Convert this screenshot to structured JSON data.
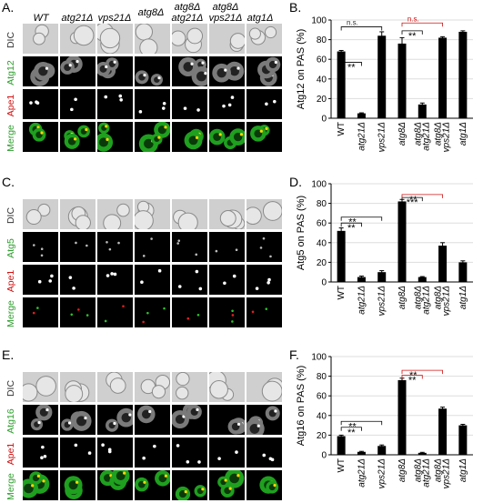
{
  "figure": {
    "strains": [
      "WT",
      "atg21Δ",
      "vps21Δ",
      "atg8Δ",
      "atg8Δ atg21Δ",
      "atg8Δ vps21Δ",
      "atg1Δ"
    ],
    "panels": [
      {
        "letter": "A.",
        "rows": [
          {
            "label": "DIC",
            "color": "#333333",
            "kind": "dic"
          },
          {
            "label": "Atg12",
            "color": "#2e9e2e",
            "kind": "gray"
          },
          {
            "label": "Ape1",
            "color": "#d01010",
            "kind": "dots"
          },
          {
            "label": "Merge",
            "color": "#2e9e2e",
            "kind": "merge"
          }
        ]
      },
      {
        "letter": "C.",
        "rows": [
          {
            "label": "DIC",
            "color": "#333333",
            "kind": "dic"
          },
          {
            "label": "Atg5",
            "color": "#2e9e2e",
            "kind": "sparse"
          },
          {
            "label": "Ape1",
            "color": "#d01010",
            "kind": "dots"
          },
          {
            "label": "Merge",
            "color": "#2e9e2e",
            "kind": "mergesparse"
          }
        ]
      },
      {
        "letter": "E.",
        "rows": [
          {
            "label": "DIC",
            "color": "#333333",
            "kind": "dic"
          },
          {
            "label": "Atg16",
            "color": "#2e9e2e",
            "kind": "gray"
          },
          {
            "label": "Ape1",
            "color": "#d01010",
            "kind": "dots"
          },
          {
            "label": "Merge",
            "color": "#2e9e2e",
            "kind": "merge"
          }
        ]
      }
    ]
  },
  "chart_data": [
    {
      "letter": "B.",
      "type": "bar",
      "categories": [
        "WT",
        "atg21Δ",
        "vps21Δ",
        "atg8Δ",
        "atg8Δ atg21Δ",
        "atg8Δ vps21Δ",
        "atg1Δ"
      ],
      "values": [
        68,
        5,
        84,
        76,
        14,
        82,
        88
      ],
      "errors": [
        1,
        0.5,
        4,
        6,
        1.5,
        1,
        1
      ],
      "ylabel": "Atg12 on PAS (%)",
      "ylim": [
        0,
        100
      ],
      "yticks": [
        0,
        20,
        40,
        60,
        80,
        100
      ],
      "grid": true,
      "brackets": [
        {
          "from": 0,
          "to": 1,
          "label": "**",
          "color": "#000000",
          "height": 57
        },
        {
          "from": 0,
          "to": 2,
          "label": "n.s.",
          "color": "#000000",
          "height": 93
        },
        {
          "from": 3,
          "to": 4,
          "label": "**",
          "color": "#000000",
          "height": 89
        },
        {
          "from": 3,
          "to": 5,
          "label": "n.s.",
          "color": "#d01010",
          "height": 97
        }
      ]
    },
    {
      "letter": "D.",
      "type": "bar",
      "categories": [
        "WT",
        "atg21Δ",
        "vps21Δ",
        "atg8Δ",
        "atg8Δ atg21Δ",
        "atg8Δ vps21Δ",
        "atg1Δ"
      ],
      "values": [
        52,
        5,
        10,
        82,
        5,
        37,
        20
      ],
      "errors": [
        3,
        1,
        1.5,
        2,
        0.5,
        3,
        1.5
      ],
      "ylabel": "Atg5 on PAS (%)",
      "ylim": [
        0,
        100
      ],
      "yticks": [
        0,
        20,
        40,
        60,
        80,
        100
      ],
      "grid": true,
      "brackets": [
        {
          "from": 0,
          "to": 1,
          "label": "**",
          "color": "#000000",
          "height": 60
        },
        {
          "from": 0,
          "to": 2,
          "label": "**",
          "color": "#000000",
          "height": 66
        },
        {
          "from": 3,
          "to": 4,
          "label": "***",
          "color": "#000000",
          "height": 86
        },
        {
          "from": 3,
          "to": 5,
          "label": "**",
          "color": "#d01010",
          "height": 89
        }
      ]
    },
    {
      "letter": "F.",
      "type": "bar",
      "categories": [
        "WT",
        "atg21Δ",
        "vps21Δ",
        "atg8Δ",
        "atg8Δ atg21Δ",
        "atg8Δ vps21Δ",
        "atg1Δ"
      ],
      "values": [
        19,
        3,
        9,
        76,
        2,
        47,
        30
      ],
      "errors": [
        1,
        0.5,
        1,
        2,
        0.5,
        1.5,
        1
      ],
      "ylabel": "Atg16 on PAS (%)",
      "ylim": [
        0,
        100
      ],
      "yticks": [
        0,
        20,
        40,
        60,
        80,
        100
      ],
      "grid": true,
      "brackets": [
        {
          "from": 0,
          "to": 1,
          "label": "**",
          "color": "#000000",
          "height": 28
        },
        {
          "from": 0,
          "to": 2,
          "label": "**",
          "color": "#000000",
          "height": 34
        },
        {
          "from": 3,
          "to": 4,
          "label": "**",
          "color": "#d01010",
          "height": 81
        },
        {
          "from": 3,
          "to": 5,
          "label": "**",
          "color": "#d01010",
          "height": 86
        }
      ]
    }
  ]
}
